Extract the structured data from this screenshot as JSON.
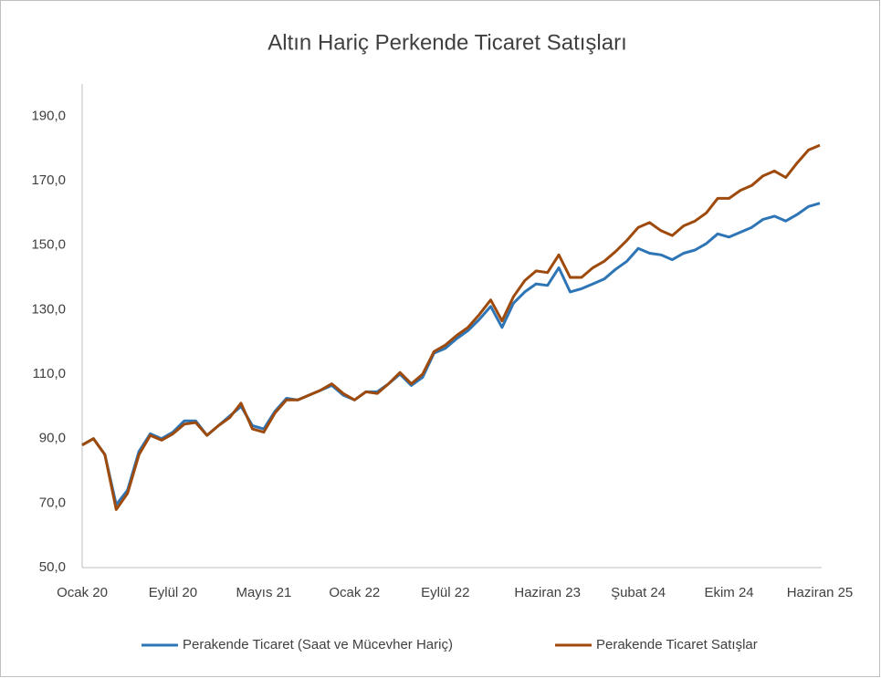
{
  "chart_data": {
    "type": "line",
    "title": "Altın Hariç Perkende Ticaret Satışları",
    "categories": [
      "Ocak 20",
      null,
      null,
      null,
      null,
      null,
      null,
      null,
      "Eylül 20",
      null,
      null,
      null,
      null,
      null,
      null,
      null,
      "Mayıs 21",
      null,
      null,
      null,
      null,
      null,
      null,
      null,
      "Ocak 22",
      null,
      null,
      null,
      null,
      null,
      null,
      null,
      "Eylül 22",
      null,
      null,
      null,
      null,
      null,
      null,
      null,
      null,
      "Haziran 23",
      null,
      null,
      null,
      null,
      null,
      null,
      null,
      "Şubat 24",
      null,
      null,
      null,
      null,
      null,
      null,
      null,
      "Ekim 24",
      null,
      null,
      null,
      null,
      null,
      null,
      null,
      "Haziran 25"
    ],
    "series": [
      {
        "name": "Perakende Ticaret (Saat ve Mücevher Hariç)",
        "color": "#2e75b6",
        "values": [
          88,
          90,
          85,
          69.5,
          74,
          86,
          91.5,
          90,
          92,
          95.5,
          95.5,
          91,
          94,
          97,
          100,
          94,
          93,
          98.5,
          102.5,
          102,
          103.5,
          105,
          106.5,
          103.5,
          102,
          104.5,
          104.5,
          107,
          110,
          106.5,
          109,
          116.5,
          118,
          121,
          123.5,
          127,
          131,
          124.5,
          132,
          135.5,
          138,
          137.5,
          143,
          135.5,
          136.5,
          138,
          139.5,
          142.5,
          145,
          149,
          147.5,
          147,
          145.5,
          147.5,
          148.5,
          150.5,
          153.5,
          152.5,
          154,
          155.5,
          158,
          159,
          157.5,
          159.5,
          162,
          163
        ]
      },
      {
        "name": "Perakende Ticaret Satışlar",
        "color": "#9e4a0c",
        "values": [
          88,
          90,
          85,
          68,
          73,
          85,
          91,
          89.5,
          91.5,
          94.5,
          95,
          91,
          94,
          96.5,
          101,
          93,
          92,
          98,
          102,
          102,
          103.5,
          105,
          107,
          104,
          102,
          104.5,
          104,
          107,
          110.5,
          107,
          110,
          117,
          119,
          122,
          124.5,
          128.5,
          133,
          126.5,
          134,
          139,
          142,
          141.5,
          147,
          140,
          140,
          143,
          145,
          148,
          151.5,
          155.5,
          157,
          154.5,
          153,
          156,
          157.5,
          160,
          164.5,
          164.5,
          167,
          168.5,
          171.5,
          173,
          171,
          175.5,
          179.5,
          181
        ]
      }
    ],
    "ylim": [
      50,
      200
    ],
    "yticks": [
      {
        "value": 50,
        "label": "50,0"
      },
      {
        "value": 70,
        "label": "70,0"
      },
      {
        "value": 90,
        "label": "90,0"
      },
      {
        "value": 110,
        "label": "110,0"
      },
      {
        "value": 130,
        "label": "130,0"
      },
      {
        "value": 150,
        "label": "150,0"
      },
      {
        "value": 170,
        "label": "170,0"
      },
      {
        "value": 190,
        "label": "190,0"
      }
    ],
    "grid": false,
    "legend": "bottom"
  }
}
